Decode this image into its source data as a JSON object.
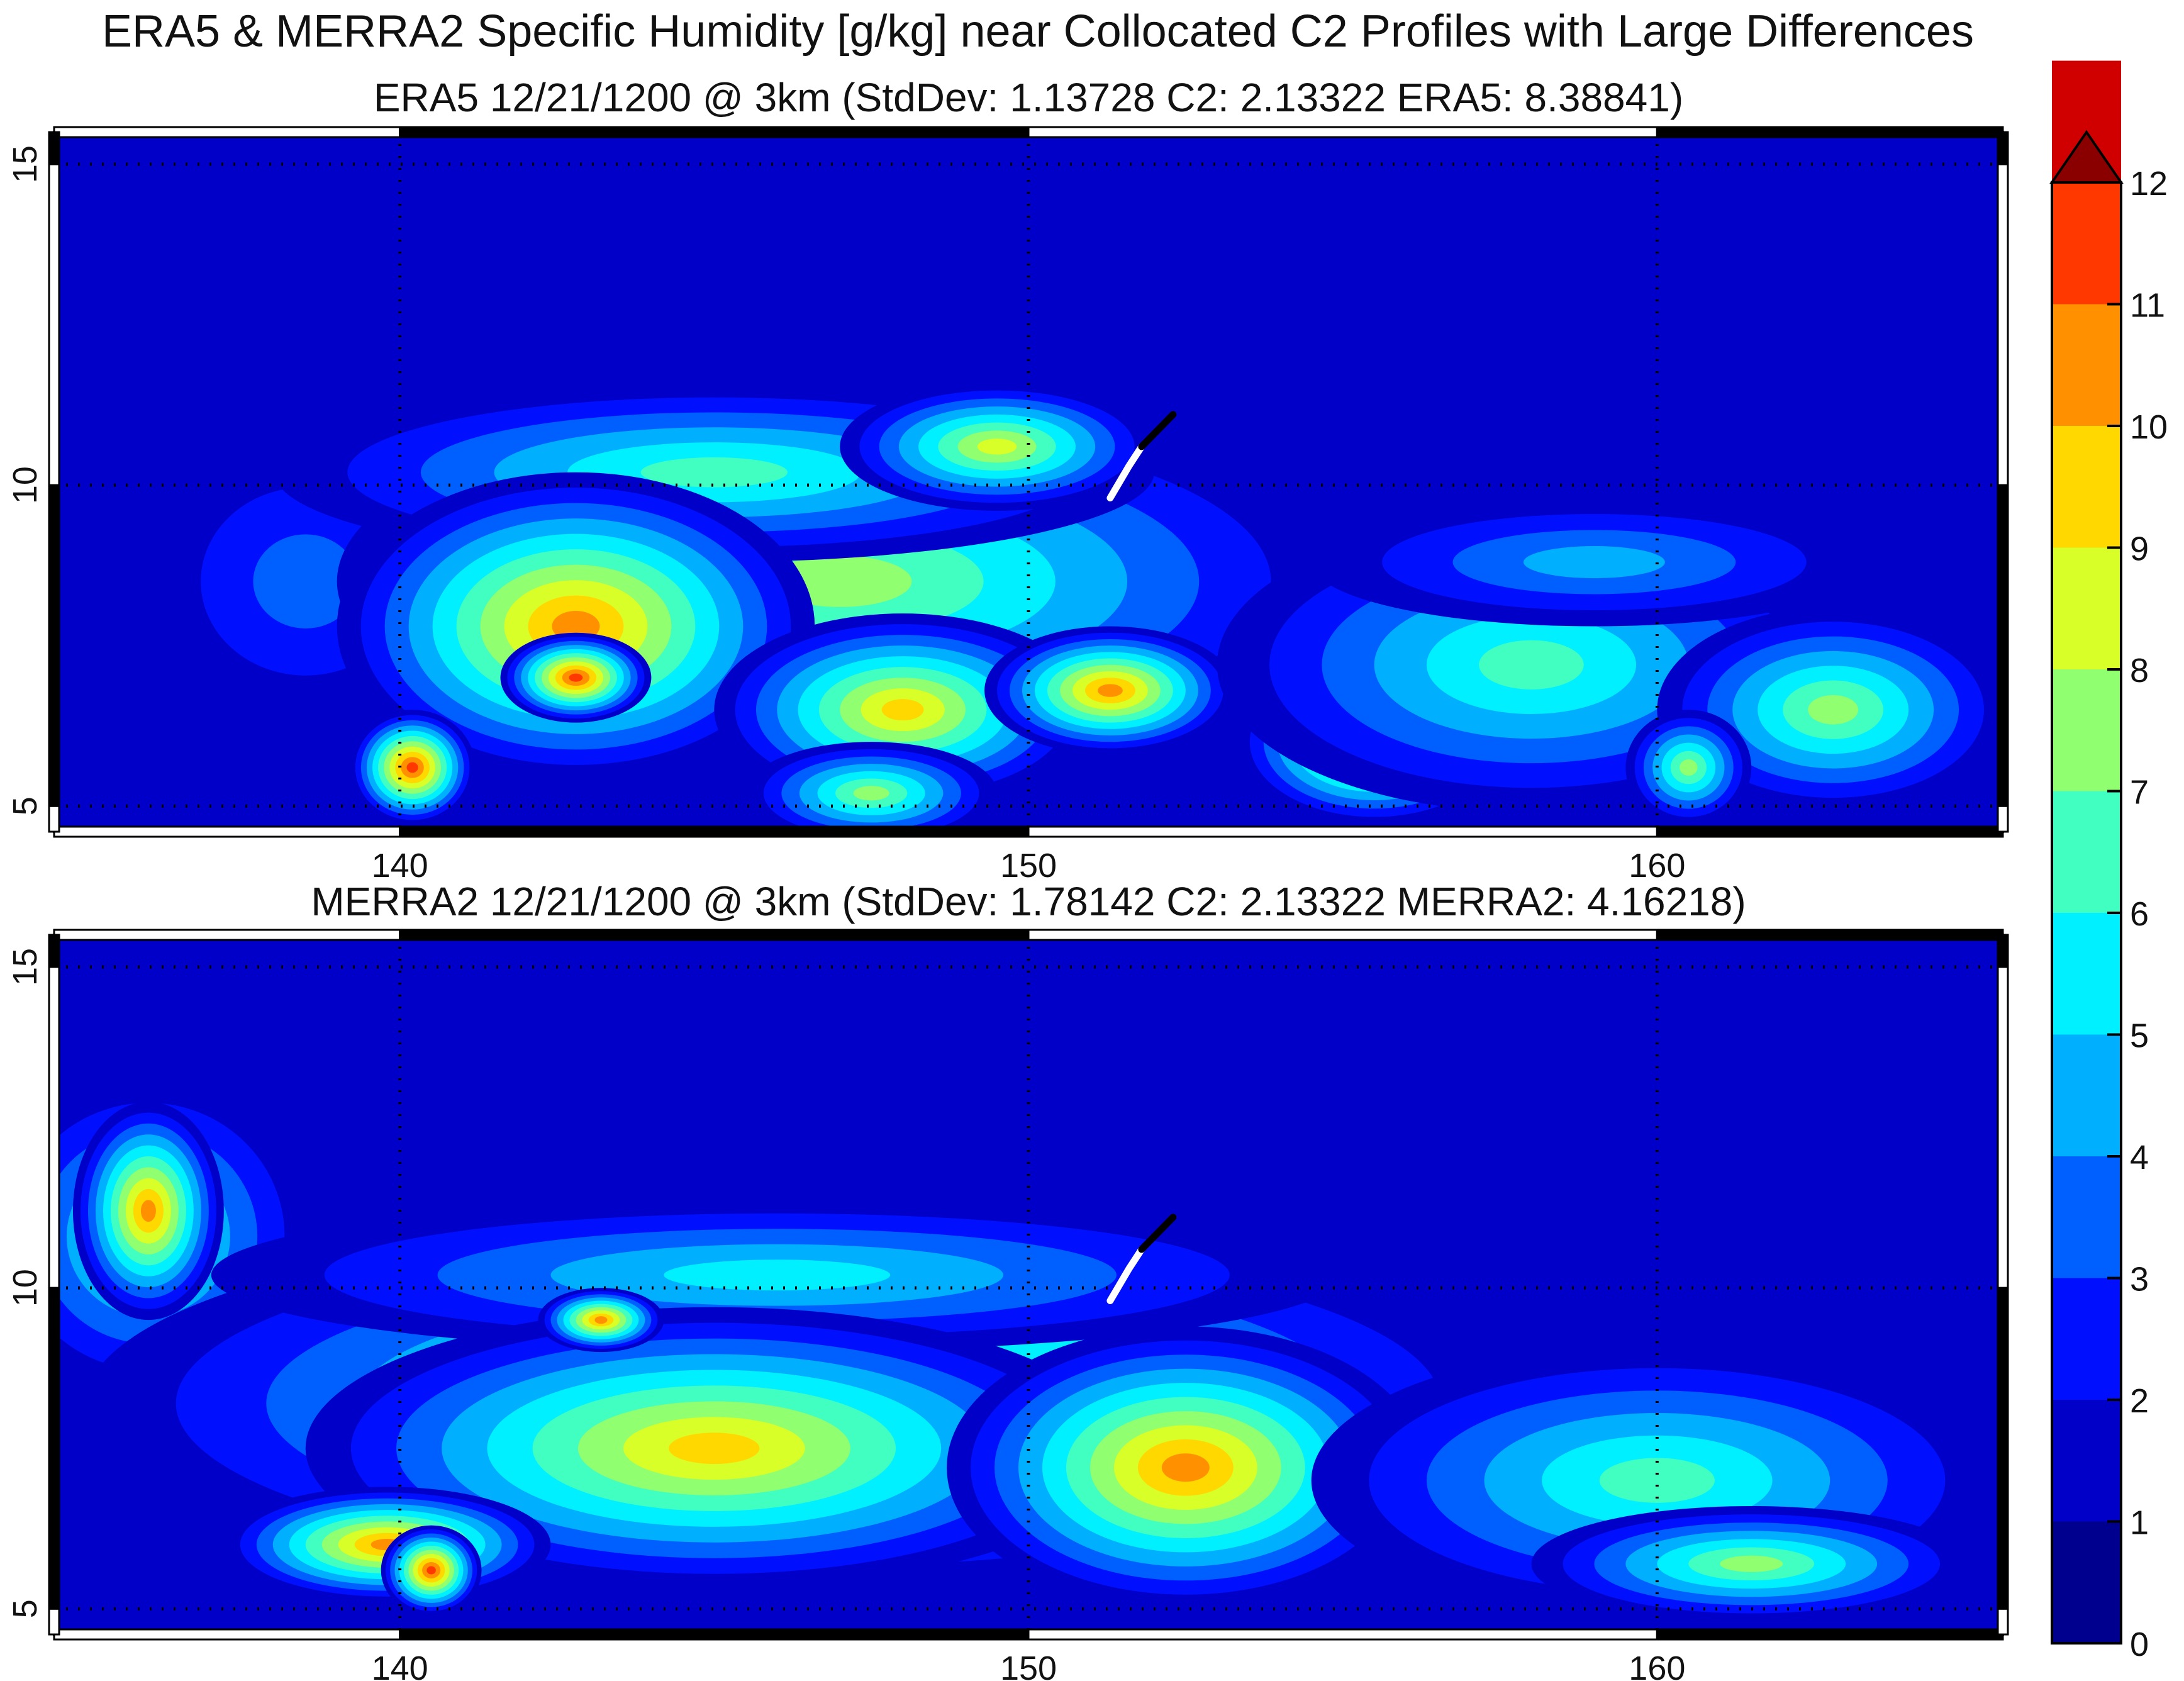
{
  "title": "ERA5 & MERRA2 Specific Humidity [g/kg] near Collocated C2 Profiles with Large Differences",
  "chart_data": {
    "type": "heatmap",
    "title": "ERA5 & MERRA2 Specific Humidity [g/kg] near Collocated C2 Profiles with Large Differences",
    "colorbar": {
      "ticks": [
        "0",
        "1",
        "2",
        "3",
        "4",
        "5",
        "6",
        "7",
        "8",
        "9",
        "10",
        "11",
        "12"
      ],
      "range": [
        0,
        12
      ],
      "extend": "max",
      "colormap": [
        "#00008f",
        "#0000c8",
        "#0010ff",
        "#0060ff",
        "#00b0ff",
        "#00f0ff",
        "#40ffc0",
        "#90ff70",
        "#d8ff28",
        "#ffd800",
        "#ff9000",
        "#ff3800",
        "#d00000",
        "#8a0000"
      ]
    },
    "panels": [
      {
        "subtitle": "ERA5 12/21/1200 @ 3km (StdDev: 1.13728   C2: 2.13322   ERA5: 8.38841)",
        "xlim": [
          134.5,
          165.5
        ],
        "ylim": [
          4.6,
          15.5
        ],
        "xticks": [
          "140",
          "150",
          "160"
        ],
        "yticks": [
          "5",
          "10",
          "15"
        ],
        "grid": "dotted at 140, 150, 160 E and 5, 10, 15 N",
        "profile_track": [
          [
            151.3,
            9.8
          ],
          [
            151.6,
            10.3
          ],
          [
            151.8,
            10.6
          ],
          [
            152.3,
            11.1
          ]
        ],
        "background": 1,
        "features": [
          {
            "lon": 138.5,
            "lat": 8.5,
            "value": 3.2,
            "rx": 2.5,
            "ry": 2.2
          },
          {
            "lon": 134.8,
            "lat": 9.0,
            "value": 1.0,
            "rx": 1.2,
            "ry": 1.5
          },
          {
            "lon": 147.0,
            "lat": 8.5,
            "value": 8.0,
            "rx": 8.0,
            "ry": 2.8
          },
          {
            "lon": 145.0,
            "lat": 10.2,
            "value": 6.5,
            "rx": 7.0,
            "ry": 1.4
          },
          {
            "lon": 149.5,
            "lat": 10.6,
            "value": 9.0,
            "rx": 2.5,
            "ry": 1.0
          },
          {
            "lon": 142.8,
            "lat": 7.8,
            "value": 11.0,
            "rx": 3.8,
            "ry": 2.4
          },
          {
            "lon": 142.8,
            "lat": 7.0,
            "value": 11.6,
            "rx": 1.2,
            "ry": 0.7
          },
          {
            "lon": 140.2,
            "lat": 5.6,
            "value": 11.3,
            "rx": 1.0,
            "ry": 0.9
          },
          {
            "lon": 148.0,
            "lat": 6.5,
            "value": 9.5,
            "rx": 3.0,
            "ry": 1.5
          },
          {
            "lon": 151.3,
            "lat": 6.8,
            "value": 10.5,
            "rx": 2.0,
            "ry": 1.0
          },
          {
            "lon": 155.5,
            "lat": 6.0,
            "value": 11.0,
            "rx": 2.2,
            "ry": 1.3
          },
          {
            "lon": 147.5,
            "lat": 5.2,
            "value": 8.0,
            "rx": 2.0,
            "ry": 0.8
          },
          {
            "lon": 158.0,
            "lat": 7.2,
            "value": 6.3,
            "rx": 5.0,
            "ry": 2.3
          },
          {
            "lon": 159.0,
            "lat": 8.8,
            "value": 4.8,
            "rx": 4.5,
            "ry": 1.0
          },
          {
            "lon": 162.8,
            "lat": 6.5,
            "value": 7.6,
            "rx": 2.8,
            "ry": 1.6
          },
          {
            "lon": 160.5,
            "lat": 5.6,
            "value": 8.0,
            "rx": 1.0,
            "ry": 0.9
          }
        ]
      },
      {
        "subtitle": "MERRA2 12/21/1200 @ 3km (StdDev: 1.78142   C2: 2.13322   MERRA2: 4.16218)",
        "xlim": [
          134.5,
          165.5
        ],
        "ylim": [
          4.6,
          15.5
        ],
        "xticks": [
          "140",
          "150",
          "160"
        ],
        "yticks": [
          "5",
          "10",
          "15"
        ],
        "grid": "dotted at 140, 150, 160 E and 5, 10, 15 N",
        "profile_track": [
          [
            151.3,
            9.8
          ],
          [
            151.6,
            10.3
          ],
          [
            151.8,
            10.6
          ],
          [
            152.3,
            11.1
          ]
        ],
        "background": 1,
        "features": [
          {
            "lon": 136.0,
            "lat": 10.8,
            "value": 7.0,
            "rx": 2.6,
            "ry": 2.5
          },
          {
            "lon": 136.0,
            "lat": 11.2,
            "value": 10.8,
            "rx": 1.2,
            "ry": 1.7
          },
          {
            "lon": 138.2,
            "lat": 9.2,
            "value": 5.0,
            "rx": 1.0,
            "ry": 0.9
          },
          {
            "lon": 146.5,
            "lat": 8.2,
            "value": 8.6,
            "rx": 11.5,
            "ry": 2.9
          },
          {
            "lon": 146.0,
            "lat": 10.2,
            "value": 6.0,
            "rx": 9.0,
            "ry": 1.2
          },
          {
            "lon": 145.0,
            "lat": 7.5,
            "value": 9.5,
            "rx": 6.5,
            "ry": 2.2
          },
          {
            "lon": 152.5,
            "lat": 7.2,
            "value": 10.5,
            "rx": 3.8,
            "ry": 2.2
          },
          {
            "lon": 139.8,
            "lat": 6.0,
            "value": 11.0,
            "rx": 2.6,
            "ry": 0.9
          },
          {
            "lon": 140.5,
            "lat": 5.6,
            "value": 11.8,
            "rx": 0.8,
            "ry": 0.7
          },
          {
            "lon": 143.2,
            "lat": 9.5,
            "value": 11.0,
            "rx": 1.0,
            "ry": 0.5
          },
          {
            "lon": 160.0,
            "lat": 7.0,
            "value": 6.8,
            "rx": 5.5,
            "ry": 2.1
          },
          {
            "lon": 161.5,
            "lat": 5.7,
            "value": 7.6,
            "rx": 3.5,
            "ry": 0.9
          }
        ]
      }
    ]
  }
}
